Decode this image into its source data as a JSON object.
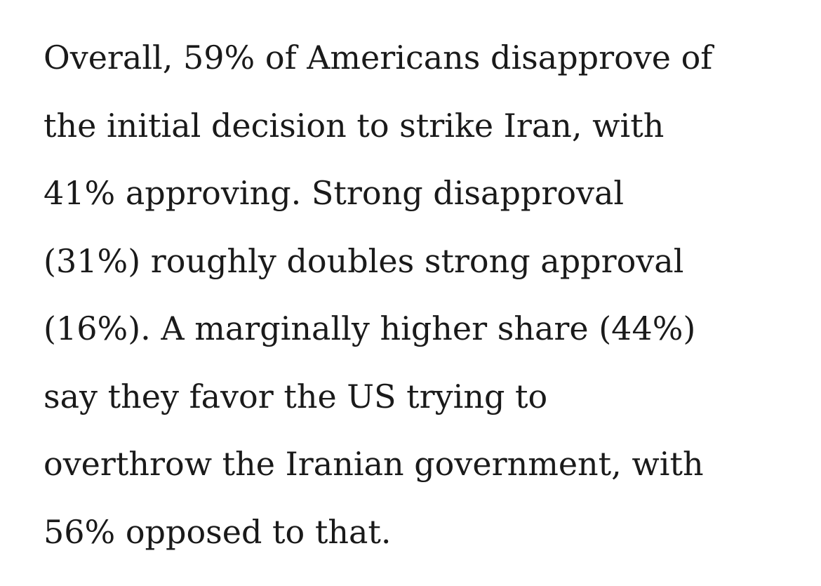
{
  "paragraph": {
    "lines": [
      "Overall, 59% of Americans disapprove of",
      "the initial decision to strike Iran, with",
      "41% approving. Strong disapproval",
      "(31%) roughly doubles strong approval",
      "(16%). A marginally higher share (44%)",
      "say they favor the US trying to",
      "overthrow the Iranian government, with",
      "56% opposed to that."
    ]
  }
}
